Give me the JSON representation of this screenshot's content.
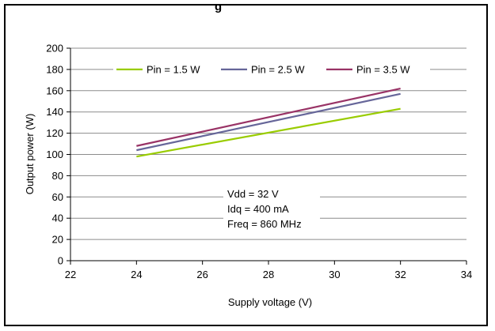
{
  "chart_data": {
    "type": "line",
    "title": "",
    "clipped_title_fragment": "g",
    "xlabel": "Supply voltage (V)",
    "ylabel": "Output power (W)",
    "xlim": [
      22,
      34
    ],
    "ylim": [
      0,
      200
    ],
    "x_ticks": [
      "22",
      "24",
      "26",
      "28",
      "30",
      "32",
      "34"
    ],
    "y_ticks": [
      "0",
      "20",
      "40",
      "60",
      "80",
      "100",
      "120",
      "140",
      "160",
      "180",
      "200"
    ],
    "grid": "horizontal",
    "legend_position": "top",
    "series": [
      {
        "name": "Pin = 1.5 W",
        "color": "#99cc00",
        "x": [
          24,
          32
        ],
        "y": [
          98,
          143
        ]
      },
      {
        "name": "Pin = 2.5 W",
        "color": "#666699",
        "x": [
          24,
          32
        ],
        "y": [
          104,
          157
        ]
      },
      {
        "name": "Pin = 3.5 W",
        "color": "#993366",
        "x": [
          24,
          32
        ],
        "y": [
          108,
          162
        ]
      }
    ],
    "annotations": [
      "Vdd = 32 V",
      "Idq = 400 mA",
      "Freq = 860 MHz"
    ]
  }
}
